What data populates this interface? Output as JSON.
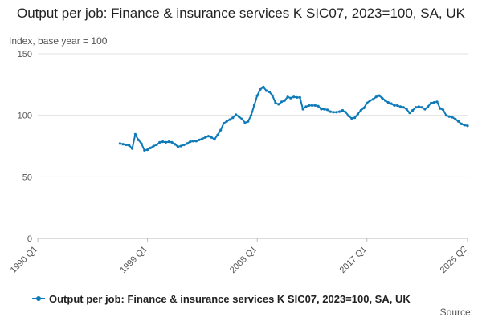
{
  "chart_data": {
    "type": "line",
    "title": "Output per job: Finance & insurance services K SIC07, 2023=100, SA, UK",
    "ylabel": "Index, base year = 100",
    "xlabel": "",
    "ylim": [
      0,
      150
    ],
    "yticks": [
      0,
      50,
      100,
      150
    ],
    "xlim": [
      "1990 Q1",
      "2025 Q2"
    ],
    "xticks": [
      "1990 Q1",
      "1999 Q1",
      "2008 Q1",
      "2017 Q1",
      "2025 Q2"
    ],
    "grid": true,
    "legend_position": "bottom",
    "source_label": "Source:",
    "series": [
      {
        "name": "Output per job: Finance & insurance services K SIC07, 2023=100, SA, UK",
        "color": "#0f7ab8",
        "points": [
          [
            "1996 Q4",
            77
          ],
          [
            "1997 Q1",
            76.5
          ],
          [
            "1997 Q2",
            76
          ],
          [
            "1997 Q3",
            75.5
          ],
          [
            "1997 Q4",
            73
          ],
          [
            "1998 Q1",
            84.5
          ],
          [
            "1998 Q2",
            80
          ],
          [
            "1998 Q3",
            77
          ],
          [
            "1998 Q4",
            71.5
          ],
          [
            "1999 Q1",
            72
          ],
          [
            "1999 Q2",
            73.5
          ],
          [
            "1999 Q3",
            75
          ],
          [
            "1999 Q4",
            76
          ],
          [
            "2000 Q1",
            78
          ],
          [
            "2000 Q2",
            78.5
          ],
          [
            "2000 Q3",
            78
          ],
          [
            "2000 Q4",
            78.5
          ],
          [
            "2001 Q1",
            78
          ],
          [
            "2001 Q2",
            76.5
          ],
          [
            "2001 Q3",
            74.5
          ],
          [
            "2001 Q4",
            75
          ],
          [
            "2002 Q1",
            76
          ],
          [
            "2002 Q2",
            77
          ],
          [
            "2002 Q3",
            78.5
          ],
          [
            "2002 Q4",
            79
          ],
          [
            "2003 Q1",
            79
          ],
          [
            "2003 Q2",
            80
          ],
          [
            "2003 Q3",
            81
          ],
          [
            "2003 Q4",
            82
          ],
          [
            "2004 Q1",
            83
          ],
          [
            "2004 Q2",
            82
          ],
          [
            "2004 Q3",
            80.5
          ],
          [
            "2004 Q4",
            84
          ],
          [
            "2005 Q1",
            88
          ],
          [
            "2005 Q2",
            93.5
          ],
          [
            "2005 Q3",
            95
          ],
          [
            "2005 Q4",
            96.5
          ],
          [
            "2006 Q1",
            98
          ],
          [
            "2006 Q2",
            100.5
          ],
          [
            "2006 Q3",
            99
          ],
          [
            "2006 Q4",
            97
          ],
          [
            "2007 Q1",
            94
          ],
          [
            "2007 Q2",
            95
          ],
          [
            "2007 Q3",
            100
          ],
          [
            "2007 Q4",
            108
          ],
          [
            "2008 Q1",
            116
          ],
          [
            "2008 Q2",
            121
          ],
          [
            "2008 Q3",
            123
          ],
          [
            "2008 Q4",
            120
          ],
          [
            "2009 Q1",
            119
          ],
          [
            "2009 Q2",
            116
          ],
          [
            "2009 Q3",
            110
          ],
          [
            "2009 Q4",
            109
          ],
          [
            "2010 Q1",
            111
          ],
          [
            "2010 Q2",
            112
          ],
          [
            "2010 Q3",
            115
          ],
          [
            "2010 Q4",
            114
          ],
          [
            "2011 Q1",
            115
          ],
          [
            "2011 Q2",
            114.5
          ],
          [
            "2011 Q3",
            114.5
          ],
          [
            "2011 Q4",
            105
          ],
          [
            "2012 Q1",
            107
          ],
          [
            "2012 Q2",
            108
          ],
          [
            "2012 Q3",
            108
          ],
          [
            "2012 Q4",
            108
          ],
          [
            "2013 Q1",
            107.5
          ],
          [
            "2013 Q2",
            105
          ],
          [
            "2013 Q3",
            105
          ],
          [
            "2013 Q4",
            104.5
          ],
          [
            "2014 Q1",
            103
          ],
          [
            "2014 Q2",
            102.5
          ],
          [
            "2014 Q3",
            102.5
          ],
          [
            "2014 Q4",
            103
          ],
          [
            "2015 Q1",
            104
          ],
          [
            "2015 Q2",
            102.5
          ],
          [
            "2015 Q3",
            99.5
          ],
          [
            "2015 Q4",
            97.5
          ],
          [
            "2016 Q1",
            98
          ],
          [
            "2016 Q2",
            101
          ],
          [
            "2016 Q3",
            104
          ],
          [
            "2016 Q4",
            106
          ],
          [
            "2017 Q1",
            110
          ],
          [
            "2017 Q2",
            112
          ],
          [
            "2017 Q3",
            113
          ],
          [
            "2017 Q4",
            115
          ],
          [
            "2018 Q1",
            116
          ],
          [
            "2018 Q2",
            114
          ],
          [
            "2018 Q3",
            112
          ],
          [
            "2018 Q4",
            110.5
          ],
          [
            "2019 Q1",
            109.5
          ],
          [
            "2019 Q2",
            108
          ],
          [
            "2019 Q3",
            108
          ],
          [
            "2019 Q4",
            107
          ],
          [
            "2020 Q1",
            106.5
          ],
          [
            "2020 Q2",
            105
          ],
          [
            "2020 Q3",
            102
          ],
          [
            "2020 Q4",
            104
          ],
          [
            "2021 Q1",
            106.5
          ],
          [
            "2021 Q2",
            107
          ],
          [
            "2021 Q3",
            106.5
          ],
          [
            "2021 Q4",
            105
          ],
          [
            "2022 Q1",
            107
          ],
          [
            "2022 Q2",
            110
          ],
          [
            "2022 Q3",
            110.5
          ],
          [
            "2022 Q4",
            111
          ],
          [
            "2023 Q1",
            105.5
          ],
          [
            "2023 Q2",
            104.5
          ],
          [
            "2023 Q3",
            100
          ],
          [
            "2023 Q4",
            99
          ],
          [
            "2024 Q1",
            98.5
          ],
          [
            "2024 Q2",
            97
          ],
          [
            "2024 Q3",
            95
          ],
          [
            "2024 Q4",
            93
          ],
          [
            "2025 Q1",
            92
          ],
          [
            "2025 Q2",
            91.5
          ]
        ]
      }
    ]
  }
}
